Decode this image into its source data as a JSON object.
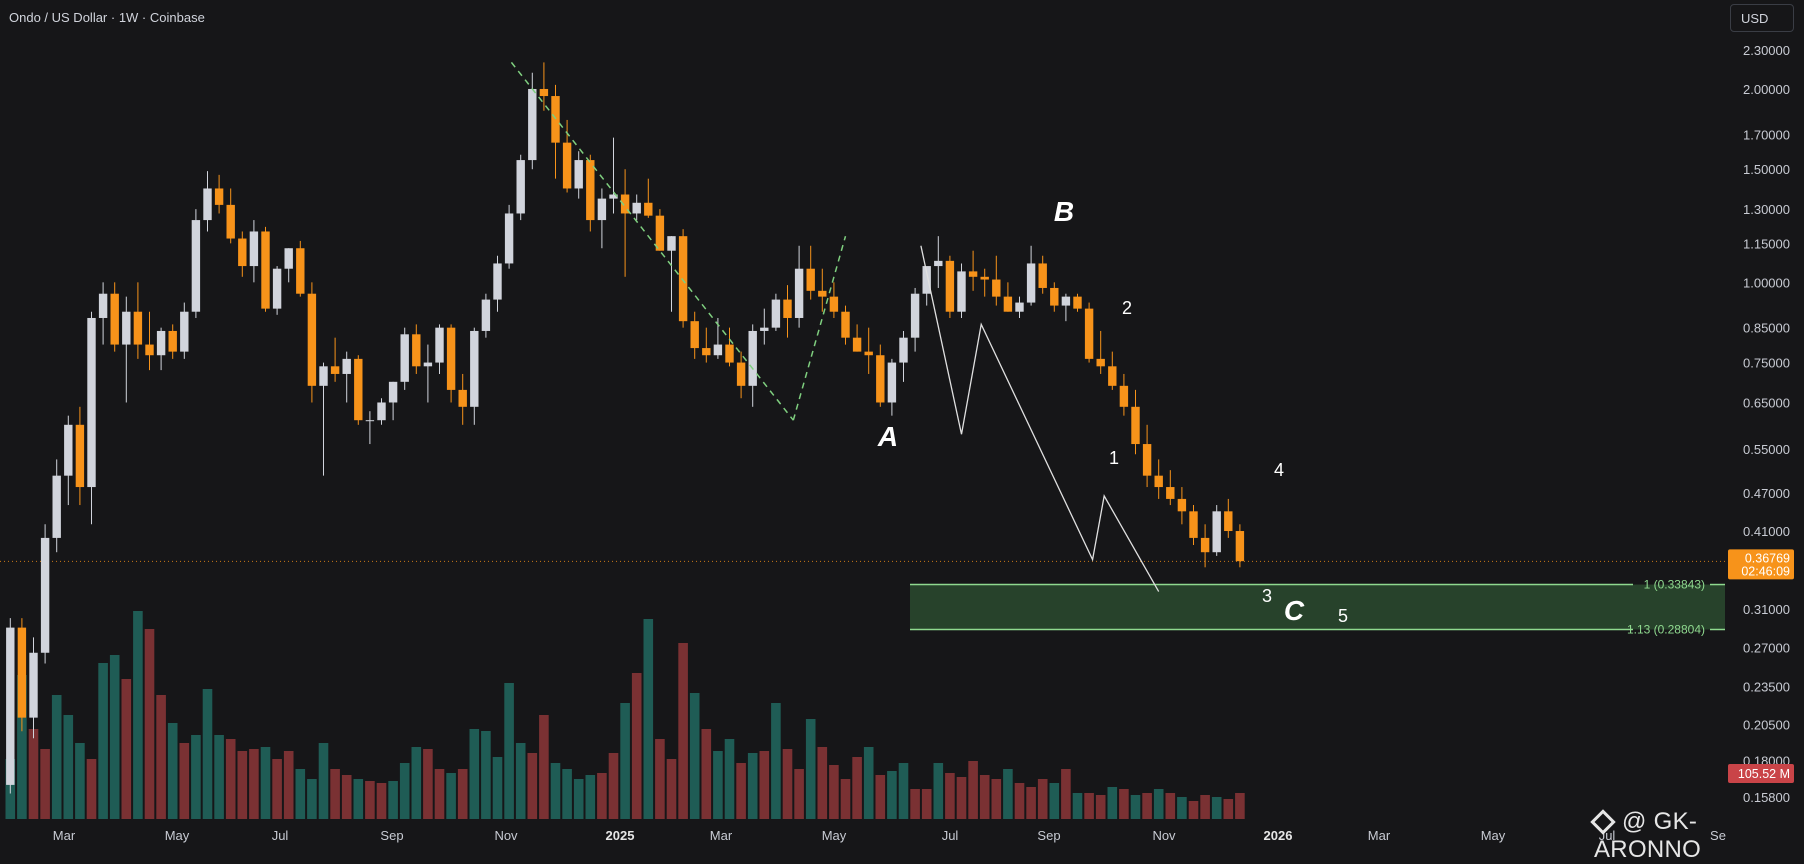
{
  "header": {
    "title": "Ondo / US Dollar · 1W · Coinbase",
    "currency": "USD"
  },
  "price_axis": {
    "ticks": [
      "2.30000",
      "2.00000",
      "1.70000",
      "1.50000",
      "1.30000",
      "1.15000",
      "1.00000",
      "0.85000",
      "0.75000",
      "0.65000",
      "0.55000",
      "0.47000",
      "0.41000",
      "0.31000",
      "0.27000",
      "0.23500",
      "0.20500",
      "0.18000",
      "0.15800"
    ],
    "current_price": "0.36769",
    "countdown": "02:46:09",
    "volume_badge": "105.52 M"
  },
  "time_axis": [
    "Mar",
    "May",
    "Jul",
    "Sep",
    "Nov",
    "2025",
    "Mar",
    "May",
    "Jul",
    "Sep",
    "Nov",
    "2026",
    "Mar",
    "May",
    "Jul",
    "Se"
  ],
  "fib_levels": [
    {
      "label": "1 (0.33843)",
      "value": 0.33843
    },
    {
      "label": "1.13 (0.28804)",
      "value": 0.28804
    }
  ],
  "wave_labels": {
    "A": "A",
    "B": "B",
    "C": "C",
    "w1": "1",
    "w2": "2",
    "w3": "3",
    "w4": "4",
    "w5": "5"
  },
  "watermark": "@ GK-ARONNO",
  "colors": {
    "up": "#d1d4dc",
    "down": "#f7931a",
    "vol_up": "#1f5c55",
    "vol_down": "#7a3133",
    "fib_zone": "#2a4a2f",
    "fib_line": "#8fd98f",
    "background": "#161618"
  },
  "chart_data": {
    "type": "candlestick",
    "symbol": "Ondo / US Dollar",
    "interval": "1W",
    "exchange": "Coinbase",
    "scale": "log",
    "ylim": [
      0.15,
      2.45
    ],
    "candles": [
      [
        0.165,
        0.3,
        0.16,
        0.29
      ],
      [
        0.29,
        0.3,
        0.2,
        0.21
      ],
      [
        0.21,
        0.28,
        0.195,
        0.265
      ],
      [
        0.265,
        0.42,
        0.255,
        0.4
      ],
      [
        0.4,
        0.53,
        0.38,
        0.5
      ],
      [
        0.5,
        0.62,
        0.45,
        0.6
      ],
      [
        0.6,
        0.64,
        0.45,
        0.48
      ],
      [
        0.48,
        0.9,
        0.42,
        0.88
      ],
      [
        0.88,
        1.0,
        0.8,
        0.96
      ],
      [
        0.96,
        1.0,
        0.78,
        0.8
      ],
      [
        0.8,
        0.95,
        0.65,
        0.9
      ],
      [
        0.9,
        1.0,
        0.76,
        0.8
      ],
      [
        0.8,
        0.9,
        0.73,
        0.77
      ],
      [
        0.77,
        0.85,
        0.73,
        0.84
      ],
      [
        0.84,
        0.86,
        0.76,
        0.78
      ],
      [
        0.78,
        0.93,
        0.76,
        0.9
      ],
      [
        0.9,
        1.3,
        0.88,
        1.25
      ],
      [
        1.25,
        1.49,
        1.2,
        1.4
      ],
      [
        1.4,
        1.47,
        1.28,
        1.32
      ],
      [
        1.32,
        1.4,
        1.15,
        1.17
      ],
      [
        1.17,
        1.2,
        1.02,
        1.06
      ],
      [
        1.06,
        1.25,
        1.0,
        1.2
      ],
      [
        1.2,
        1.22,
        0.9,
        0.91
      ],
      [
        0.91,
        1.06,
        0.89,
        1.05
      ],
      [
        1.05,
        1.13,
        1.0,
        1.13
      ],
      [
        1.13,
        1.16,
        0.95,
        0.96
      ],
      [
        0.96,
        1.0,
        0.65,
        0.69
      ],
      [
        0.69,
        0.75,
        0.5,
        0.74
      ],
      [
        0.74,
        0.82,
        0.7,
        0.72
      ],
      [
        0.72,
        0.78,
        0.65,
        0.76
      ],
      [
        0.76,
        0.77,
        0.6,
        0.61
      ],
      [
        0.61,
        0.63,
        0.56,
        0.61
      ],
      [
        0.61,
        0.66,
        0.6,
        0.65
      ],
      [
        0.65,
        0.7,
        0.61,
        0.7
      ],
      [
        0.7,
        0.85,
        0.68,
        0.83
      ],
      [
        0.83,
        0.86,
        0.72,
        0.74
      ],
      [
        0.74,
        0.8,
        0.65,
        0.75
      ],
      [
        0.75,
        0.86,
        0.72,
        0.85
      ],
      [
        0.85,
        0.86,
        0.65,
        0.68
      ],
      [
        0.68,
        0.72,
        0.6,
        0.64
      ],
      [
        0.64,
        0.85,
        0.6,
        0.84
      ],
      [
        0.84,
        0.96,
        0.82,
        0.94
      ],
      [
        0.94,
        1.1,
        0.9,
        1.07
      ],
      [
        1.07,
        1.32,
        1.05,
        1.28
      ],
      [
        1.28,
        1.58,
        1.25,
        1.55
      ],
      [
        1.55,
        2.12,
        1.5,
        2.0
      ],
      [
        2.0,
        2.2,
        1.85,
        1.95
      ],
      [
        1.95,
        2.03,
        1.45,
        1.65
      ],
      [
        1.65,
        1.79,
        1.38,
        1.4
      ],
      [
        1.4,
        1.6,
        1.35,
        1.55
      ],
      [
        1.55,
        1.58,
        1.2,
        1.25
      ],
      [
        1.25,
        1.4,
        1.13,
        1.35
      ],
      [
        1.35,
        1.68,
        1.28,
        1.37
      ],
      [
        1.37,
        1.5,
        1.02,
        1.28
      ],
      [
        1.28,
        1.37,
        1.25,
        1.33
      ],
      [
        1.33,
        1.45,
        1.26,
        1.27
      ],
      [
        1.27,
        1.3,
        1.12,
        1.12
      ],
      [
        1.12,
        1.18,
        0.9,
        1.18
      ],
      [
        1.18,
        1.21,
        0.85,
        0.87
      ],
      [
        0.87,
        0.9,
        0.76,
        0.79
      ],
      [
        0.79,
        0.85,
        0.75,
        0.77
      ],
      [
        0.77,
        0.88,
        0.76,
        0.8
      ],
      [
        0.8,
        0.85,
        0.74,
        0.75
      ],
      [
        0.75,
        0.78,
        0.66,
        0.69
      ],
      [
        0.69,
        0.86,
        0.64,
        0.84
      ],
      [
        0.84,
        0.91,
        0.8,
        0.85
      ],
      [
        0.85,
        0.96,
        0.84,
        0.94
      ],
      [
        0.94,
        0.99,
        0.82,
        0.88
      ],
      [
        0.88,
        1.14,
        0.85,
        1.05
      ],
      [
        1.05,
        1.14,
        0.94,
        0.97
      ],
      [
        0.97,
        1.05,
        0.9,
        0.95
      ],
      [
        0.95,
        1.0,
        0.88,
        0.9
      ],
      [
        0.9,
        0.92,
        0.8,
        0.82
      ],
      [
        0.82,
        0.86,
        0.78,
        0.78
      ],
      [
        0.78,
        0.85,
        0.72,
        0.77
      ],
      [
        0.77,
        0.8,
        0.64,
        0.65
      ],
      [
        0.65,
        0.76,
        0.62,
        0.75
      ],
      [
        0.75,
        0.84,
        0.7,
        0.82
      ],
      [
        0.82,
        0.98,
        0.78,
        0.96
      ],
      [
        0.96,
        1.05,
        0.92,
        1.06
      ],
      [
        1.06,
        1.18,
        0.98,
        1.08
      ],
      [
        1.08,
        1.1,
        0.88,
        0.9
      ],
      [
        0.9,
        1.07,
        0.88,
        1.04
      ],
      [
        1.04,
        1.12,
        0.97,
        1.02
      ],
      [
        1.02,
        1.05,
        0.95,
        1.01
      ],
      [
        1.01,
        1.1,
        0.92,
        0.95
      ],
      [
        0.95,
        1.0,
        0.9,
        0.9
      ],
      [
        0.9,
        0.95,
        0.88,
        0.93
      ],
      [
        0.93,
        1.14,
        0.92,
        1.07
      ],
      [
        1.07,
        1.1,
        0.96,
        0.98
      ],
      [
        0.98,
        1.0,
        0.9,
        0.92
      ],
      [
        0.92,
        0.96,
        0.87,
        0.95
      ],
      [
        0.95,
        0.96,
        0.9,
        0.91
      ],
      [
        0.91,
        0.93,
        0.75,
        0.76
      ],
      [
        0.76,
        0.84,
        0.72,
        0.74
      ],
      [
        0.74,
        0.78,
        0.68,
        0.69
      ],
      [
        0.69,
        0.72,
        0.62,
        0.64
      ],
      [
        0.64,
        0.68,
        0.54,
        0.56
      ],
      [
        0.56,
        0.6,
        0.48,
        0.5
      ],
      [
        0.5,
        0.53,
        0.46,
        0.48
      ],
      [
        0.48,
        0.51,
        0.45,
        0.46
      ],
      [
        0.46,
        0.48,
        0.42,
        0.44
      ],
      [
        0.44,
        0.45,
        0.39,
        0.4
      ],
      [
        0.4,
        0.42,
        0.36,
        0.38
      ],
      [
        0.38,
        0.45,
        0.375,
        0.44
      ],
      [
        0.44,
        0.46,
        0.4,
        0.41
      ],
      [
        0.41,
        0.42,
        0.36,
        0.368
      ]
    ],
    "volumes": [
      [
        30,
        0
      ],
      [
        72,
        0
      ],
      [
        45,
        1
      ],
      [
        35,
        1
      ],
      [
        62,
        0
      ],
      [
        52,
        0
      ],
      [
        38,
        0
      ],
      [
        30,
        1
      ],
      [
        78,
        0
      ],
      [
        82,
        0
      ],
      [
        70,
        1
      ],
      [
        104,
        0
      ],
      [
        95,
        1
      ],
      [
        62,
        1
      ],
      [
        48,
        0
      ],
      [
        38,
        1
      ],
      [
        42,
        0
      ],
      [
        65,
        0
      ],
      [
        42,
        0
      ],
      [
        40,
        1
      ],
      [
        34,
        1
      ],
      [
        35,
        1
      ],
      [
        36,
        0
      ],
      [
        30,
        1
      ],
      [
        34,
        1
      ],
      [
        25,
        0
      ],
      [
        20,
        0
      ],
      [
        38,
        0
      ],
      [
        25,
        1
      ],
      [
        22,
        1
      ],
      [
        20,
        0
      ],
      [
        19,
        1
      ],
      [
        18,
        1
      ],
      [
        19,
        0
      ],
      [
        28,
        0
      ],
      [
        36,
        0
      ],
      [
        35,
        1
      ],
      [
        25,
        1
      ],
      [
        23,
        0
      ],
      [
        25,
        1
      ],
      [
        45,
        0
      ],
      [
        44,
        0
      ],
      [
        31,
        0
      ],
      [
        68,
        0
      ],
      [
        38,
        0
      ],
      [
        33,
        1
      ],
      [
        52,
        1
      ],
      [
        28,
        0
      ],
      [
        25,
        0
      ],
      [
        20,
        0
      ],
      [
        22,
        0
      ],
      [
        23,
        1
      ],
      [
        33,
        1
      ],
      [
        58,
        0
      ],
      [
        73,
        1
      ],
      [
        100,
        0
      ],
      [
        40,
        1
      ],
      [
        30,
        1
      ],
      [
        88,
        1
      ],
      [
        63,
        0
      ],
      [
        45,
        1
      ],
      [
        34,
        0
      ],
      [
        40,
        0
      ],
      [
        28,
        1
      ],
      [
        33,
        0
      ],
      [
        34,
        1
      ],
      [
        58,
        0
      ],
      [
        35,
        1
      ],
      [
        25,
        1
      ],
      [
        50,
        0
      ],
      [
        36,
        1
      ],
      [
        27,
        1
      ],
      [
        20,
        1
      ],
      [
        31,
        1
      ],
      [
        36,
        0
      ],
      [
        22,
        1
      ],
      [
        24,
        0
      ],
      [
        28,
        0
      ],
      [
        15,
        1
      ],
      [
        15,
        1
      ],
      [
        28,
        0
      ],
      [
        23,
        1
      ],
      [
        21,
        1
      ],
      [
        29,
        1
      ],
      [
        22,
        1
      ],
      [
        20,
        1
      ],
      [
        25,
        0
      ],
      [
        18,
        1
      ],
      [
        16,
        1
      ],
      [
        20,
        1
      ],
      [
        18,
        0
      ],
      [
        25,
        1
      ],
      [
        13,
        0
      ],
      [
        13,
        1
      ],
      [
        12,
        1
      ],
      [
        16,
        0
      ],
      [
        15,
        1
      ],
      [
        12,
        0
      ],
      [
        13,
        1
      ],
      [
        15,
        0
      ],
      [
        13,
        1
      ],
      [
        11,
        0
      ],
      [
        9,
        1
      ],
      [
        12,
        1
      ],
      [
        11,
        0
      ],
      [
        10,
        1
      ],
      [
        13,
        1
      ]
    ],
    "volume_units": "M (relative)"
  }
}
